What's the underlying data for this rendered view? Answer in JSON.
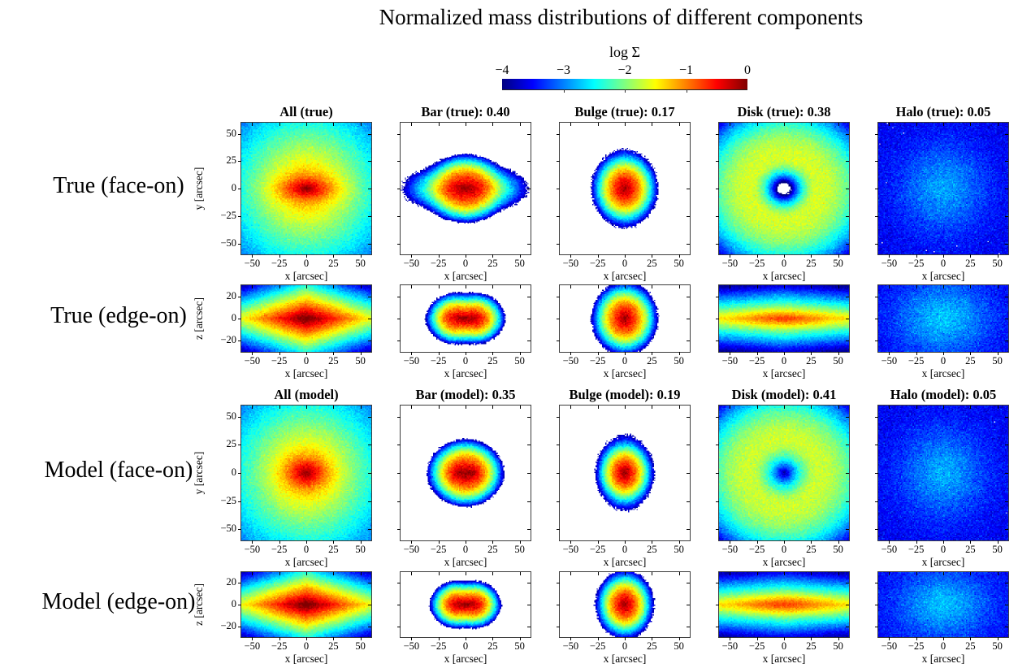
{
  "header": {
    "title": "Normalized mass distributions of different components"
  },
  "chart_data": {
    "type": "heatmap",
    "title": "Normalized mass distributions of different components",
    "colorbar": {
      "label": "log Σ",
      "ticks": [
        -4,
        -3,
        -2,
        -1,
        0
      ],
      "vmin": -4,
      "vmax": 0,
      "colormap": "jet"
    },
    "xlabel": "x [arcsec]",
    "xlim": [
      -60,
      60
    ],
    "xticks": [
      -50,
      -25,
      0,
      25,
      50
    ],
    "columns": [
      "All",
      "Bar",
      "Bulge",
      "Disk",
      "Halo"
    ],
    "mass_fractions": {
      "true": {
        "Bar": 0.4,
        "Bulge": 0.17,
        "Disk": 0.38,
        "Halo": 0.05
      },
      "model": {
        "Bar": 0.35,
        "Bulge": 0.19,
        "Disk": 0.41,
        "Halo": 0.05
      }
    },
    "rows": [
      {
        "label": "True (face-on)",
        "view": "face-on",
        "ylabel": "y [arcsec]",
        "ylim": [
          -60,
          60
        ],
        "yticks": [
          -50,
          -25,
          0,
          25,
          50
        ],
        "panels": [
          {
            "title": "All (true)",
            "component": "All",
            "dataset": "true",
            "description": "full galaxy, cyan field with yellow body and horizontally elongated red bar core",
            "density": {
              "noise": 0.22,
              "mask": -99,
              "floor": 0,
              "comps": [
                {
                  "amp": 0.11,
                  "xs": 18,
                  "ys": 18,
                  "p": 1
                },
                {
                  "amp": 0.85,
                  "xs": 9,
                  "ys": 4,
                  "p": 1.1
                }
              ]
            }
          },
          {
            "title": "Bar (true): 0.40",
            "component": "Bar",
            "dataset": "true",
            "description": "isolated elongated bar blob on white background, red horizontal core",
            "density": {
              "noise": 0.25,
              "mask": -3.85,
              "floor": 0,
              "comps": [
                {
                  "amp": 0.55,
                  "xs": 10,
                  "ys": 4,
                  "p": 1.2
                },
                {
                  "amp": 0.28,
                  "xs": 16.5,
                  "ys": 13,
                  "p": 2.3
                }
              ]
            }
          },
          {
            "title": "Bulge (true): 0.17",
            "component": "Bulge",
            "dataset": "true",
            "description": "round bulge blob on white background, compact red core",
            "density": {
              "noise": 0.25,
              "mask": -3.85,
              "floor": 0,
              "comps": [
                {
                  "amp": 0.55,
                  "xs": 3.2,
                  "ys": 4.2,
                  "p": 1
                },
                {
                  "amp": 0.3,
                  "xs": 11,
                  "ys": 12,
                  "p": 2
                }
              ]
            }
          },
          {
            "title": "Disk (true): 0.38",
            "component": "Disk",
            "dataset": "true",
            "description": "cyan disk with yellow-green ring, dark-blue depression and empty white hole at centre",
            "density": {
              "noise": 0.22,
              "mask": -4.15,
              "floor": 0,
              "comps": [
                {
                  "type": "ring",
                  "amp": 0.022,
                  "r0": 31,
                  "wIn": 10.5,
                  "wOut": 27,
                  "p": 2,
                  "yscale": 1.1
                }
              ]
            }
          },
          {
            "title": "Halo (true): 0.05",
            "component": "Halo",
            "dataset": "true",
            "description": "faint dark-blue halo with diffuse lighter centre, white speckles near corners",
            "density": {
              "noise": 0.3,
              "mask": -3.9,
              "floor": 0.00028,
              "comps": [
                {
                  "amp": 0.0011,
                  "xs": 30,
                  "ys": 30,
                  "p": 1.6
                }
              ]
            }
          }
        ]
      },
      {
        "label": "True (edge-on)",
        "view": "edge-on",
        "ylabel": "z [arcsec]",
        "ylim": [
          -30,
          30
        ],
        "yticks": [
          -20,
          0,
          20
        ],
        "panels": [
          {
            "title": null,
            "component": "All",
            "dataset": "true",
            "description": "edge-on diamond/spindle, red midplane core, yellow wedge, blue-cyan edges",
            "density": {
              "noise": 0.2,
              "mask": -99,
              "floor": 0,
              "comps": [
                {
                  "amp": 1.0,
                  "xs": 17,
                  "ys": 5.5,
                  "metric": "diamond",
                  "p": 1
                },
                {
                  "amp": 0.4,
                  "xs": 10,
                  "ys": 3.5,
                  "p": 1
                }
              ]
            }
          },
          {
            "title": null,
            "component": "Bar",
            "dataset": "true",
            "description": "peanut-shaped edge-on bar on white background",
            "density": {
              "noise": 0.25,
              "mask": -3.85,
              "floor": 0,
              "comps": [
                {
                  "amp": 0.26,
                  "x0": -9,
                  "xs": 10,
                  "ys": 8.5,
                  "p": 2
                },
                {
                  "amp": 0.26,
                  "x0": 9,
                  "xs": 10,
                  "ys": 8.5,
                  "p": 2
                },
                {
                  "amp": 0.6,
                  "xs": 9,
                  "ys": 3.2,
                  "p": 1.6
                }
              ]
            }
          },
          {
            "title": null,
            "component": "Bulge",
            "dataset": "true",
            "description": "round edge-on bulge blob with red core on white background",
            "density": {
              "noise": 0.25,
              "mask": -3.85,
              "floor": 0,
              "comps": [
                {
                  "amp": 0.55,
                  "xs": 3.2,
                  "ys": 3.8,
                  "p": 1
                },
                {
                  "amp": 0.3,
                  "xs": 11,
                  "ys": 11.5,
                  "p": 2
                }
              ]
            }
          },
          {
            "title": null,
            "component": "Disk",
            "dataset": "true",
            "description": "thin edge-on disk band, orange midplane across full width",
            "density": {
              "noise": 0.2,
              "mask": -99,
              "floor": 0,
              "comps": [
                {
                  "amp": 0.09,
                  "xs": 70,
                  "ys": 5.0,
                  "metric": "diamond",
                  "p": 1
                },
                {
                  "amp": 0.1,
                  "xs": 25,
                  "ys": 4,
                  "p": 1.5
                }
              ]
            }
          },
          {
            "title": null,
            "component": "Halo",
            "dataset": "true",
            "description": "blue halo with broad cyan central glow",
            "density": {
              "noise": 0.3,
              "mask": -3.95,
              "floor": 0.00028,
              "comps": [
                {
                  "amp": 0.0016,
                  "xs": 32,
                  "ys": 24,
                  "p": 1.6
                }
              ]
            }
          }
        ]
      },
      {
        "label": "Model (face-on)",
        "view": "face-on",
        "ylabel": "y [arcsec]",
        "ylim": [
          -60,
          60
        ],
        "yticks": [
          -50,
          -25,
          0,
          25,
          50
        ],
        "panels": [
          {
            "title": "All (model)",
            "component": "All",
            "dataset": "model",
            "description": "model galaxy, cyan field with yellow body and rounder red core",
            "density": {
              "noise": 0.22,
              "mask": -99,
              "floor": 0,
              "comps": [
                {
                  "amp": 0.11,
                  "xs": 18,
                  "ys": 18,
                  "p": 1
                },
                {
                  "amp": 0.85,
                  "xs": 7,
                  "ys": 5,
                  "p": 1.1
                }
              ]
            }
          },
          {
            "title": "Bar (model): 0.35",
            "component": "Bar",
            "dataset": "model",
            "description": "model bar blob, slightly smaller, red core with central waist",
            "density": {
              "noise": 0.25,
              "mask": -3.85,
              "floor": 0,
              "comps": [
                {
                  "amp": 0.5,
                  "x0": -5,
                  "xs": 5.5,
                  "ys": 4,
                  "p": 1.3
                },
                {
                  "amp": 0.5,
                  "x0": 5,
                  "xs": 5.5,
                  "ys": 4,
                  "p": 1.3
                },
                {
                  "amp": 0.28,
                  "xs": 14.5,
                  "ys": 12.5,
                  "p": 2.3
                }
              ]
            }
          },
          {
            "title": "Bulge (model): 0.19",
            "component": "Bulge",
            "dataset": "model",
            "description": "compact model bulge blob with red core",
            "density": {
              "noise": 0.25,
              "mask": -3.85,
              "floor": 0,
              "comps": [
                {
                  "amp": 0.6,
                  "xs": 3.0,
                  "ys": 4.0,
                  "p": 1
                },
                {
                  "amp": 0.28,
                  "xs": 9.5,
                  "ys": 10.5,
                  "p": 2
                }
              ]
            }
          },
          {
            "title": "Disk (model): 0.41",
            "component": "Disk",
            "dataset": "model",
            "description": "model disk with yellow-green ring and dark-blue speckled centre (no hole)",
            "density": {
              "noise": 0.22,
              "mask": -5,
              "floor": 0,
              "comps": [
                {
                  "type": "ring",
                  "amp": 0.02,
                  "r0": 32,
                  "wIn": 14,
                  "wOut": 27,
                  "p": 2,
                  "yscale": 1.1
                }
              ]
            }
          },
          {
            "title": "Halo (model): 0.05",
            "component": "Halo",
            "dataset": "model",
            "description": "model halo, dark blue with cyan glow and tiny dark dot at centre",
            "density": {
              "noise": 0.3,
              "mask": -3.95,
              "floor": 0.00028,
              "comps": [
                {
                  "amp": 0.0014,
                  "xs": 26,
                  "ys": 26,
                  "p": 1.4
                },
                {
                  "amp": -0.0008,
                  "xs": 1.5,
                  "ys": 1.5,
                  "p": 2
                }
              ]
            }
          }
        ]
      },
      {
        "label": "Model (edge-on)",
        "view": "edge-on",
        "ylabel": "z [arcsec]",
        "ylim": [
          -30,
          30
        ],
        "yticks": [
          -20,
          0,
          20
        ],
        "panels": [
          {
            "title": null,
            "component": "All",
            "dataset": "model",
            "description": "model edge-on spindle with red midplane core",
            "density": {
              "noise": 0.2,
              "mask": -99,
              "floor": 0,
              "comps": [
                {
                  "amp": 1.0,
                  "xs": 17,
                  "ys": 5.5,
                  "metric": "diamond",
                  "p": 1
                },
                {
                  "amp": 0.45,
                  "xs": 11,
                  "ys": 3.5,
                  "p": 1
                }
              ]
            }
          },
          {
            "title": null,
            "component": "Bar",
            "dataset": "model",
            "description": "model edge-on bar, pronounced peanut shape",
            "density": {
              "noise": 0.25,
              "mask": -3.85,
              "floor": 0,
              "comps": [
                {
                  "amp": 0.28,
                  "x0": -8,
                  "xs": 9,
                  "ys": 8,
                  "p": 2
                },
                {
                  "amp": 0.28,
                  "x0": 8,
                  "xs": 9,
                  "ys": 8,
                  "p": 2
                },
                {
                  "amp": 0.6,
                  "xs": 8,
                  "ys": 3.0,
                  "p": 1.6
                }
              ]
            }
          },
          {
            "title": null,
            "component": "Bulge",
            "dataset": "model",
            "description": "model edge-on bulge blob with red core",
            "density": {
              "noise": 0.25,
              "mask": -3.85,
              "floor": 0,
              "comps": [
                {
                  "amp": 0.6,
                  "xs": 3.0,
                  "ys": 3.6,
                  "p": 1
                },
                {
                  "amp": 0.28,
                  "xs": 9.5,
                  "ys": 11,
                  "p": 2
                }
              ]
            }
          },
          {
            "title": null,
            "component": "Disk",
            "dataset": "model",
            "description": "model edge-on disk band with orange midplane",
            "density": {
              "noise": 0.2,
              "mask": -99,
              "floor": 0,
              "comps": [
                {
                  "amp": 0.09,
                  "xs": 70,
                  "ys": 5.2,
                  "metric": "diamond",
                  "p": 1
                },
                {
                  "amp": 0.1,
                  "xs": 28,
                  "ys": 4.5,
                  "p": 1.5
                }
              ]
            }
          },
          {
            "title": null,
            "component": "Halo",
            "dataset": "model",
            "description": "model edge-on halo, blue with mottled cyan centre",
            "density": {
              "noise": 0.3,
              "mask": -3.95,
              "floor": 0.00028,
              "comps": [
                {
                  "amp": 0.0016,
                  "xs": 30,
                  "ys": 22,
                  "p": 1.5
                }
              ]
            }
          }
        ]
      }
    ]
  }
}
